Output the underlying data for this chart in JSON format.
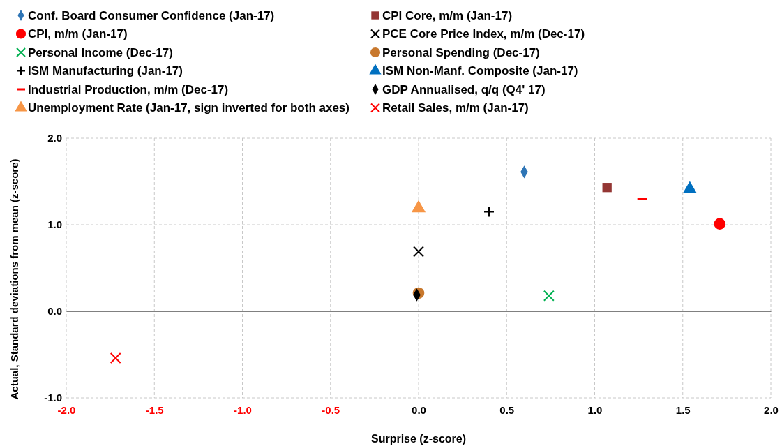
{
  "chart_data": {
    "type": "scatter",
    "xlabel": "Surprise (z-score)",
    "ylabel": "Actual, Standard deviations from mean (z-score)",
    "xlim": [
      -2,
      2
    ],
    "xticks": [
      {
        "value": -2,
        "label": "-2.0"
      },
      {
        "value": -1.5,
        "label": "-1.5"
      },
      {
        "value": -1,
        "label": "-1.0"
      },
      {
        "value": -0.5,
        "label": "-0.5"
      },
      {
        "value": 0,
        "label": "0.0"
      },
      {
        "value": 0.5,
        "label": "0.5"
      },
      {
        "value": 1,
        "label": "1.0"
      },
      {
        "value": 1.5,
        "label": "1.5"
      },
      {
        "value": 2,
        "label": "2.0"
      }
    ],
    "ylim": [
      -1,
      2
    ],
    "yticks": [
      {
        "value": -1,
        "label": "-1.0"
      },
      {
        "value": 0,
        "label": "0.0"
      },
      {
        "value": 1,
        "label": "1.0"
      },
      {
        "value": 2,
        "label": "2.0"
      }
    ],
    "grid": true,
    "legend": "top",
    "series": [
      {
        "name": "Conf. Board Consumer Confidence (Jan-17)",
        "color": "#2e75b6",
        "marker": "diamond",
        "x": [
          0.6
        ],
        "values": [
          1.61
        ]
      },
      {
        "name": "CPI Core, m/m (Jan-17)",
        "color": "#943634",
        "marker": "square",
        "x": [
          1.07
        ],
        "values": [
          1.43
        ]
      },
      {
        "name": "CPI, m/m (Jan-17)",
        "color": "#ff0000",
        "marker": "circle",
        "x": [
          1.71
        ],
        "values": [
          1.01
        ]
      },
      {
        "name": "PCE Core Price Index, m/m (Dec-17)",
        "color": "#000000",
        "marker": "cross",
        "x": [
          0
        ],
        "values": [
          0.69
        ]
      },
      {
        "name": "Personal Income (Dec-17)",
        "color": "#00b050",
        "marker": "cross",
        "x": [
          0.74
        ],
        "values": [
          0.18
        ]
      },
      {
        "name": "Personal Spending (Dec-17)",
        "color": "#c8782d",
        "marker": "circle",
        "x": [
          0
        ],
        "values": [
          0.21
        ]
      },
      {
        "name": "ISM Manufacturing (Jan-17)",
        "color": "#000000",
        "marker": "plus",
        "x": [
          0.4
        ],
        "values": [
          1.15
        ]
      },
      {
        "name": "ISM Non-Manf. Composite (Jan-17)",
        "color": "#0070c0",
        "marker": "triangle",
        "x": [
          1.54
        ],
        "values": [
          1.41
        ]
      },
      {
        "name": "Industrial Production, m/m  (Dec-17)",
        "color": "#ff0000",
        "x": [
          1.27
        ],
        "values": [
          1.3
        ]
      },
      {
        "name": "GDP Annualised, q/q (Q4' 17)",
        "color": "#000000",
        "marker": "diamond",
        "x": [
          -0.01
        ],
        "values": [
          0.19
        ]
      },
      {
        "name": "Unemployment Rate (Jan-17, sign inverted for both axes)",
        "color": "#f79646",
        "marker": "triangle",
        "x": [
          0
        ],
        "values": [
          1.19
        ]
      },
      {
        "name": "Retail Sales, m/m (Jan-17)",
        "color": "#ff0000",
        "marker": "cross",
        "x": [
          -1.72
        ],
        "values": [
          -0.54
        ]
      }
    ]
  }
}
